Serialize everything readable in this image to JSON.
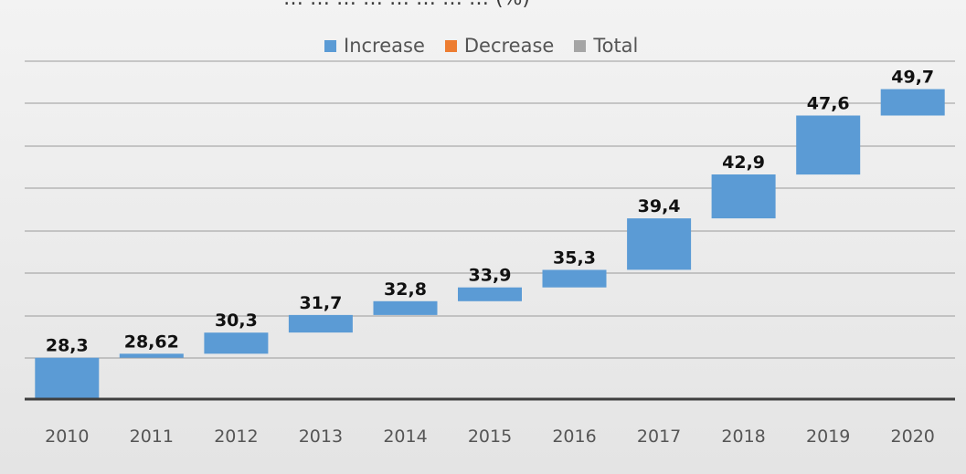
{
  "chart_data": {
    "type": "bar",
    "variant": "waterfall",
    "title": "… … … … … … … … (%)",
    "categories": [
      "2010",
      "2011",
      "2012",
      "2013",
      "2014",
      "2015",
      "2016",
      "2017",
      "2018",
      "2019",
      "2020"
    ],
    "values": [
      28.3,
      28.62,
      30.3,
      31.7,
      32.8,
      33.9,
      35.3,
      39.4,
      42.9,
      47.6,
      49.7
    ],
    "value_labels": [
      "28,3",
      "28,62",
      "30,3",
      "31,7",
      "32,8",
      "33,9",
      "35,3",
      "39,4",
      "42,9",
      "47,6",
      "49,7"
    ],
    "legend": [
      {
        "name": "Increase",
        "color": "#5b9bd5"
      },
      {
        "name": "Decrease",
        "color": "#ed7d31"
      },
      {
        "name": "Total",
        "color": "#a5a5a5"
      }
    ],
    "legend_position": "top",
    "ylim": [
      25,
      52
    ],
    "gridlines": true,
    "y_axis_labels_visible": false
  }
}
